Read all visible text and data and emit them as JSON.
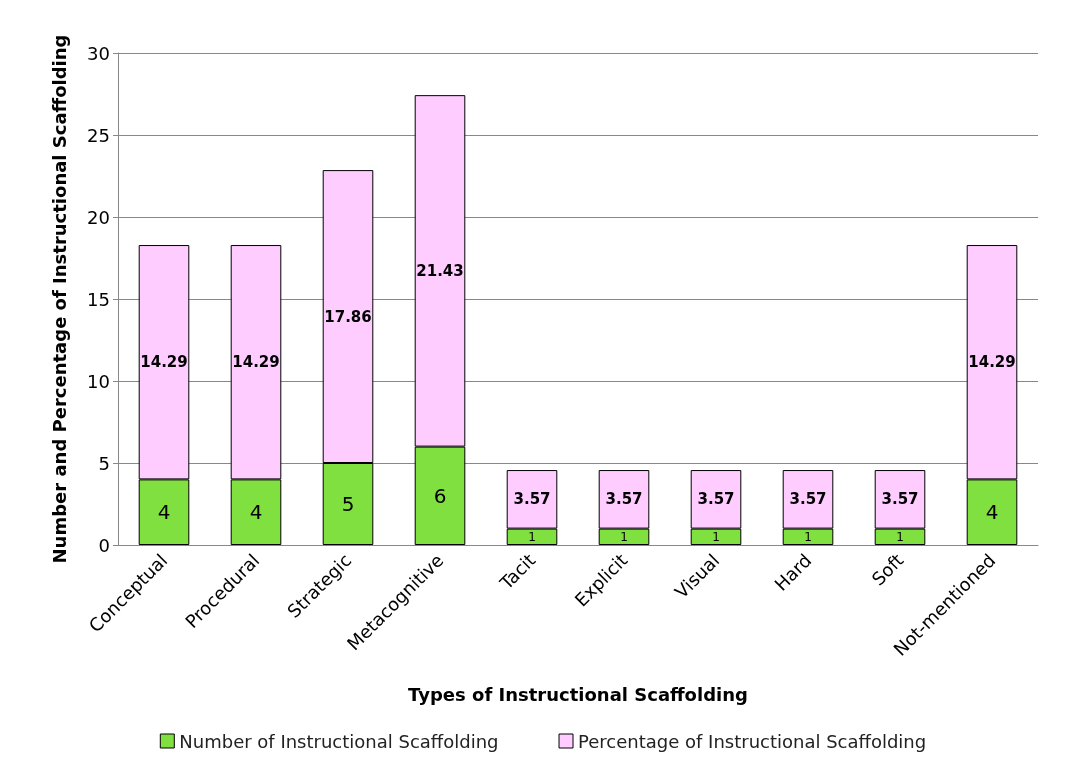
{
  "chart_data": {
    "type": "bar",
    "stacked": true,
    "xlabel": "Types of Instructional Scaffolding",
    "ylabel": "Number and Percentage of Instructional Scaffolding",
    "categories": [
      "Conceptual",
      "Procedural",
      "Strategic",
      "Metacognitive",
      "Tacit",
      "Explicit",
      "Visual",
      "Hard",
      "Soft",
      "Not-mentioned"
    ],
    "series": [
      {
        "name": "Number of Instructional Scaffolding",
        "color": "#80e040",
        "values": [
          4,
          4,
          5,
          6,
          1,
          1,
          1,
          1,
          1,
          4
        ]
      },
      {
        "name": "Percentage of Instructional Scaffolding",
        "color": "#ffccff",
        "values": [
          14.29,
          14.29,
          17.86,
          21.43,
          3.57,
          3.57,
          3.57,
          3.57,
          3.57,
          14.29
        ]
      }
    ],
    "ylim": [
      0,
      30
    ],
    "yticks": [
      0,
      5,
      10,
      15,
      20,
      25,
      30
    ],
    "grid": "y",
    "legend": "bottom",
    "data_labels": true
  }
}
